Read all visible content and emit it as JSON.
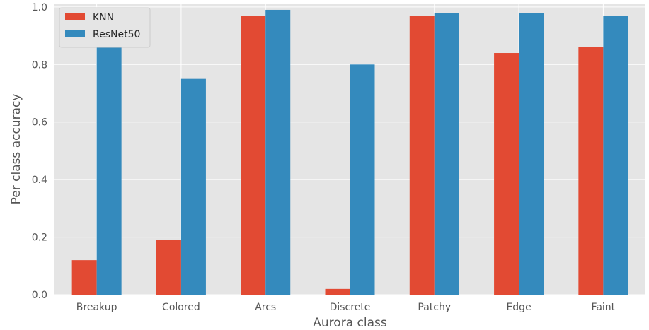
{
  "chart_data": {
    "type": "bar",
    "title": "",
    "xlabel": "Aurora class",
    "ylabel": "Per class accuracy",
    "categories": [
      "Breakup",
      "Colored",
      "Arcs",
      "Discrete",
      "Patchy",
      "Edge",
      "Faint"
    ],
    "series": [
      {
        "name": "KNN",
        "color": "#E24A33",
        "values": [
          0.12,
          0.19,
          0.97,
          0.02,
          0.97,
          0.84,
          0.86
        ]
      },
      {
        "name": "ResNet50",
        "color": "#348ABD",
        "values": [
          0.88,
          0.75,
          0.99,
          0.8,
          0.98,
          0.98,
          0.97
        ]
      }
    ],
    "ylim": [
      0,
      1.0
    ],
    "yticks": [
      "0.0",
      "0.2",
      "0.4",
      "0.6",
      "0.8",
      "1.0"
    ],
    "grid": true,
    "legend_position": "top-left",
    "background_color": "#E5E5E5",
    "grid_color": "#FFFFFF"
  }
}
